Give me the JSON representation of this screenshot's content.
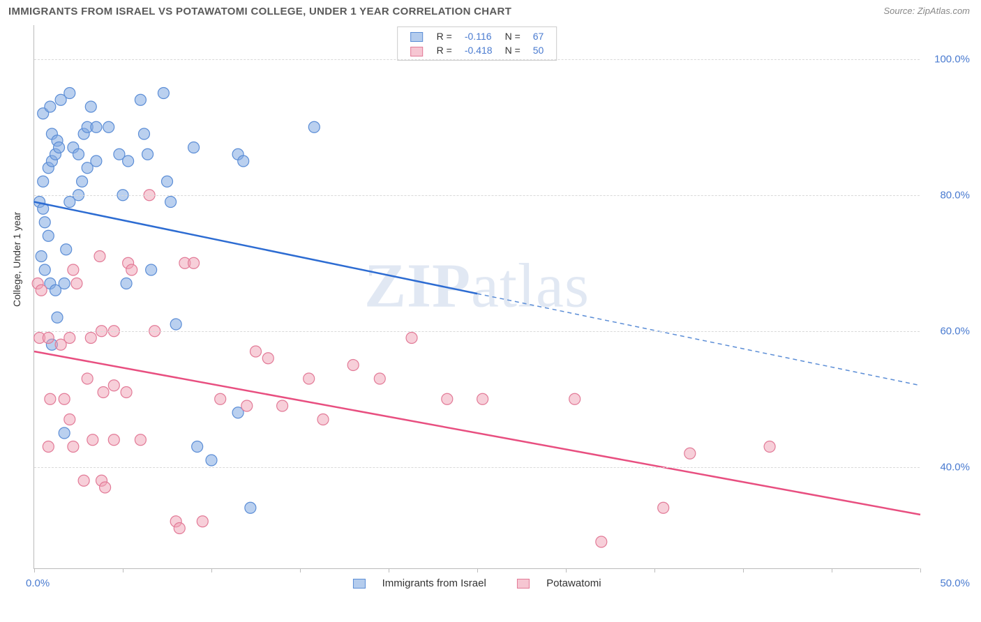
{
  "title": "IMMIGRANTS FROM ISRAEL VS POTAWATOMI COLLEGE, UNDER 1 YEAR CORRELATION CHART",
  "source": "Source: ZipAtlas.com",
  "watermark": "ZIPatlas",
  "ylabel": "College, Under 1 year",
  "chart": {
    "type": "scatter-with-regression",
    "x_domain": [
      0,
      50
    ],
    "y_domain": [
      25,
      105
    ],
    "xaxis_start": "0.0%",
    "xaxis_end": "50.0%",
    "xticks": [
      0,
      5,
      10,
      15,
      20,
      25,
      30,
      35,
      40,
      45,
      50
    ],
    "yticks": [
      {
        "v": 40,
        "label": "40.0%"
      },
      {
        "v": 60,
        "label": "60.0%"
      },
      {
        "v": 80,
        "label": "80.0%"
      },
      {
        "v": 100,
        "label": "100.0%"
      }
    ],
    "grid_color": "#d9d9d9",
    "background_color": "#ffffff",
    "marker_radius": 8,
    "series": [
      {
        "name": "Immigrants from Israel",
        "color_fill": "rgba(130,170,225,0.55)",
        "color_stroke": "#5b8dd6",
        "line_color": "#2d6cd2",
        "R": "-0.116",
        "N": "67",
        "regression": {
          "x1": 0,
          "y1": 79,
          "x2": 50,
          "y2": 52,
          "solid_until_x": 25
        },
        "points": [
          [
            0.3,
            79
          ],
          [
            0.5,
            78
          ],
          [
            0.6,
            76
          ],
          [
            0.8,
            74
          ],
          [
            0.5,
            82
          ],
          [
            0.8,
            84
          ],
          [
            1.0,
            85
          ],
          [
            1.2,
            86
          ],
          [
            1.0,
            89
          ],
          [
            1.3,
            88
          ],
          [
            1.4,
            87
          ],
          [
            0.5,
            92
          ],
          [
            0.9,
            93
          ],
          [
            1.5,
            94
          ],
          [
            2.0,
            95
          ],
          [
            2.2,
            87
          ],
          [
            2.5,
            86
          ],
          [
            2.8,
            89
          ],
          [
            3.0,
            90
          ],
          [
            3.2,
            93
          ],
          [
            3.5,
            90
          ],
          [
            0.4,
            71
          ],
          [
            0.6,
            69
          ],
          [
            0.9,
            67
          ],
          [
            1.2,
            66
          ],
          [
            1.7,
            67
          ],
          [
            1.8,
            72
          ],
          [
            2.0,
            79
          ],
          [
            2.5,
            80
          ],
          [
            2.7,
            82
          ],
          [
            3.0,
            84
          ],
          [
            3.5,
            85
          ],
          [
            4.2,
            90
          ],
          [
            4.8,
            86
          ],
          [
            5.3,
            85
          ],
          [
            5.0,
            80
          ],
          [
            5.2,
            67
          ],
          [
            6.0,
            94
          ],
          [
            6.2,
            89
          ],
          [
            6.4,
            86
          ],
          [
            6.6,
            69
          ],
          [
            7.3,
            95
          ],
          [
            7.5,
            82
          ],
          [
            7.7,
            79
          ],
          [
            9.0,
            87
          ],
          [
            8.0,
            61
          ],
          [
            9.2,
            43
          ],
          [
            10.0,
            41
          ],
          [
            11.5,
            86
          ],
          [
            11.8,
            85
          ],
          [
            11.5,
            48
          ],
          [
            12.2,
            34
          ],
          [
            15.8,
            90
          ],
          [
            1.3,
            62
          ],
          [
            1.0,
            58
          ],
          [
            1.7,
            45
          ]
        ]
      },
      {
        "name": "Potawatomi",
        "color_fill": "rgba(240,160,180,0.5)",
        "color_stroke": "#e27a97",
        "line_color": "#e84f80",
        "R": "-0.418",
        "N": "50",
        "regression": {
          "x1": 0,
          "y1": 57,
          "x2": 50,
          "y2": 33,
          "solid_until_x": 50
        },
        "points": [
          [
            0.2,
            67
          ],
          [
            0.4,
            66
          ],
          [
            0.3,
            59
          ],
          [
            0.8,
            59
          ],
          [
            1.5,
            58
          ],
          [
            2.0,
            59
          ],
          [
            3.2,
            59
          ],
          [
            3.8,
            60
          ],
          [
            2.2,
            69
          ],
          [
            2.4,
            67
          ],
          [
            3.7,
            71
          ],
          [
            5.3,
            70
          ],
          [
            5.5,
            69
          ],
          [
            4.5,
            60
          ],
          [
            6.5,
            80
          ],
          [
            8.5,
            70
          ],
          [
            9.0,
            70
          ],
          [
            6.8,
            60
          ],
          [
            0.9,
            50
          ],
          [
            1.7,
            50
          ],
          [
            2.0,
            47
          ],
          [
            3.0,
            53
          ],
          [
            3.9,
            51
          ],
          [
            4.5,
            52
          ],
          [
            5.2,
            51
          ],
          [
            0.8,
            43
          ],
          [
            2.2,
            43
          ],
          [
            3.3,
            44
          ],
          [
            4.5,
            44
          ],
          [
            6.0,
            44
          ],
          [
            2.8,
            38
          ],
          [
            3.8,
            38
          ],
          [
            4.0,
            37
          ],
          [
            8.0,
            32
          ],
          [
            8.2,
            31
          ],
          [
            9.5,
            32
          ],
          [
            10.5,
            50
          ],
          [
            12.0,
            49
          ],
          [
            14.0,
            49
          ],
          [
            12.5,
            57
          ],
          [
            13.2,
            56
          ],
          [
            15.5,
            53
          ],
          [
            16.3,
            47
          ],
          [
            18.0,
            55
          ],
          [
            19.5,
            53
          ],
          [
            21.3,
            59
          ],
          [
            23.3,
            50
          ],
          [
            25.3,
            50
          ],
          [
            30.5,
            50
          ],
          [
            32.0,
            29
          ],
          [
            35.5,
            34
          ],
          [
            37.0,
            42
          ],
          [
            41.5,
            43
          ]
        ]
      }
    ]
  },
  "legend_bottom": [
    "Immigrants from Israel",
    "Potawatomi"
  ]
}
